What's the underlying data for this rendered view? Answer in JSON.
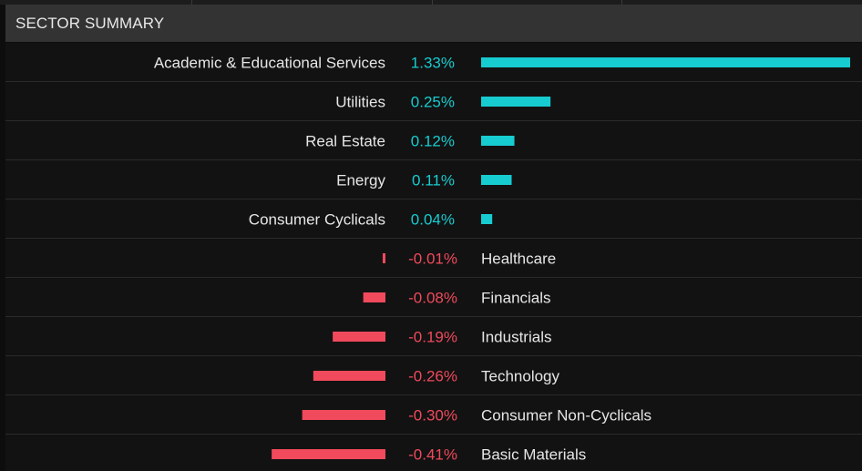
{
  "panel": {
    "title": "SECTOR SUMMARY"
  },
  "colors": {
    "positive": "#17ccd0",
    "negative": "#f04a5c",
    "background": "#0d0d0d",
    "header": "#333333"
  },
  "chart_data": {
    "type": "bar",
    "orientation": "horizontal",
    "title": "SECTOR SUMMARY",
    "value_format": "percent",
    "categories": [
      "Academic & Educational Services",
      "Utilities",
      "Real Estate",
      "Energy",
      "Consumer Cyclicals",
      "Healthcare",
      "Financials",
      "Industrials",
      "Technology",
      "Consumer Non-Cyclicals",
      "Basic Materials"
    ],
    "values": [
      1.33,
      0.25,
      0.12,
      0.11,
      0.04,
      -0.01,
      -0.08,
      -0.19,
      -0.26,
      -0.3,
      -0.41
    ],
    "value_labels": [
      "1.33%",
      "0.25%",
      "0.12%",
      "0.11%",
      "0.04%",
      "-0.01%",
      "-0.08%",
      "-0.19%",
      "-0.26%",
      "-0.30%",
      "-0.41%"
    ],
    "xlabel": "",
    "ylabel": ""
  }
}
